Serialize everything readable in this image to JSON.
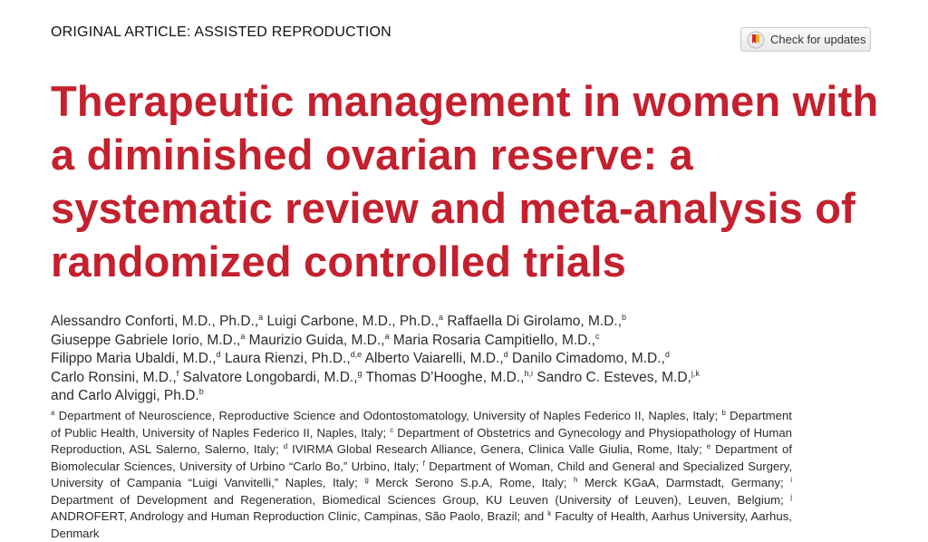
{
  "header": {
    "section": "ORIGINAL ARTICLE: ASSISTED REPRODUCTION",
    "updates_button": "Check for updates"
  },
  "title": "Therapeutic management in women with a diminished ovarian reserve: a systematic review and meta-analysis of randomized controlled trials",
  "authors": [
    {
      "name": "Alessandro Conforti, M.D., Ph.D.,",
      "sup": "a"
    },
    {
      "name": "Luigi Carbone, M.D., Ph.D.,",
      "sup": "a"
    },
    {
      "name": "Raffaella Di Girolamo, M.D.,",
      "sup": "b"
    },
    {
      "name": "Giuseppe Gabriele Iorio, M.D.,",
      "sup": "a"
    },
    {
      "name": "Maurizio Guida, M.D.,",
      "sup": "a"
    },
    {
      "name": "Maria Rosaria Campitiello, M.D.,",
      "sup": "c"
    },
    {
      "name": "Filippo Maria Ubaldi, M.D.,",
      "sup": "d"
    },
    {
      "name": "Laura Rienzi, Ph.D.,",
      "sup": "d,e"
    },
    {
      "name": "Alberto Vaiarelli, M.D.,",
      "sup": "d"
    },
    {
      "name": "Danilo Cimadomo, M.D.,",
      "sup": "d"
    },
    {
      "name": "Carlo Ronsini, M.D.,",
      "sup": "f"
    },
    {
      "name": "Salvatore Longobardi, M.D.,",
      "sup": "g"
    },
    {
      "name": "Thomas D’Hooghe, M.D.,",
      "sup": "h,i"
    },
    {
      "name": "Sandro C. Esteves, M.D,",
      "sup": "j,k"
    },
    {
      "name": "and Carlo Alviggi, Ph.D.",
      "sup": "b"
    }
  ],
  "affiliations": [
    {
      "sup": "a",
      "text": "Department of Neuroscience, Reproductive Science and Odontostomatology, University of Naples Federico II, Naples, Italy;"
    },
    {
      "sup": "b",
      "text": "Department of Public Health, University of Naples Federico II, Naples, Italy;"
    },
    {
      "sup": "c",
      "text": "Department of Obstetrics and Gynecology and Physiopathology of Human Reproduction, ASL Salerno, Salerno, Italy;"
    },
    {
      "sup": "d",
      "text": "IVIRMA Global Research Alliance, Genera, Clinica Valle Giulia, Rome, Italy;"
    },
    {
      "sup": "e",
      "text": "Department of Biomolecular Sciences, University of Urbino “Carlo Bo,” Urbino, Italy;"
    },
    {
      "sup": "f",
      "text": "Department of Woman, Child and General and Specialized Surgery, University of Campania “Luigi Vanvitelli,” Naples, Italy;"
    },
    {
      "sup": "g",
      "text": "Merck Serono S.p.A, Rome, Italy;"
    },
    {
      "sup": "h",
      "text": "Merck KGaA, Darmstadt, Germany;"
    },
    {
      "sup": "i",
      "text": "Department of Development and Regeneration, Biomedical Sciences Group, KU Leuven (University of Leuven), Leuven, Belgium;"
    },
    {
      "sup": "j",
      "text": "ANDROFERT, Andrology and Human Reproduction Clinic, Campinas, São Paolo, Brazil; and"
    },
    {
      "sup": "k",
      "text": "Faculty of Health, Aarhus University, Aarhus, Denmark"
    }
  ]
}
